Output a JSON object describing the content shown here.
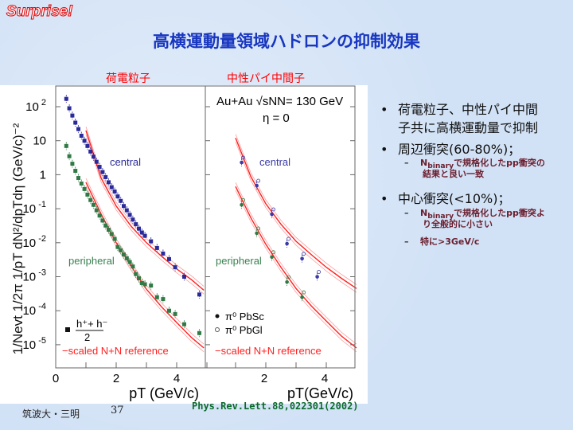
{
  "slide": {
    "badge": "Surprise!",
    "title": "高横運動量領域ハドロンの抑制効果",
    "subhead_left": "荷電粒子",
    "subhead_right": "中性パイ中間子",
    "footer": "筑波大・三明",
    "page_number": "37",
    "reference": "Phys.Rev.Lett.88,022301(2002)"
  },
  "bullets": [
    {
      "text": "荷電粒子、中性パイ中間",
      "text2": "子共に高横運動量で抑制"
    },
    {
      "text": "周辺衝突(60-80%)；",
      "subs": [
        {
          "pre": "N",
          "subscript": "binary",
          "text": "で規格化したpp衝突の",
          "text2": "結果と良い一致"
        }
      ]
    },
    {
      "text": "中心衝突(<10%)；",
      "subs": [
        {
          "pre": "N",
          "subscript": "binary",
          "text": "で規格化したpp衝突よ",
          "text2": "り全般的に小さい"
        },
        {
          "text": "特に>3GeV/c"
        }
      ]
    }
  ],
  "chart_data": [
    {
      "type": "scatter",
      "panel": "charged hadrons",
      "ylabel": "1/Nevt 1/2π 1/pT dN²/dpTdη (GeV/c)⁻²",
      "xlabel": "pT (GeV/c)",
      "xlim": [
        0,
        4.9
      ],
      "ylim": [
        2.1e-06,
        400
      ],
      "yscale": "log",
      "xticks": [
        "0",
        "2",
        "4"
      ],
      "yticks": [
        {
          "base": "10",
          "exp": "2"
        },
        {
          "base": "10",
          "exp": ""
        },
        {
          "base": "1",
          "exp": ""
        },
        {
          "base": "10",
          "exp": "-1"
        },
        {
          "base": "10",
          "exp": "-2"
        },
        {
          "base": "10",
          "exp": "-3"
        },
        {
          "base": "10",
          "exp": "-4"
        },
        {
          "base": "10",
          "exp": "-5"
        }
      ],
      "labels": {
        "central": "central",
        "peripheral": "peripheral",
        "legend_marker": "h⁺+ h⁻",
        "legend_denominator": "2",
        "legend_ref": "−scaled N+N reference"
      },
      "series": [
        {
          "name": "central",
          "color": "#2a2a9a",
          "x": [
            0.35,
            0.45,
            0.55,
            0.65,
            0.75,
            0.85,
            0.95,
            1.05,
            1.15,
            1.25,
            1.35,
            1.45,
            1.55,
            1.65,
            1.75,
            1.85,
            1.95,
            2.05,
            2.15,
            2.25,
            2.35,
            2.45,
            2.55,
            2.65,
            2.75,
            2.85,
            2.95,
            3.15,
            3.35,
            3.55,
            3.75,
            3.95,
            4.25,
            4.75
          ],
          "y": [
            170,
            90,
            55,
            34,
            22,
            14,
            10,
            7,
            4.8,
            3.4,
            2.4,
            1.7,
            1.2,
            0.85,
            0.6,
            0.43,
            0.32,
            0.23,
            0.17,
            0.12,
            0.09,
            0.066,
            0.048,
            0.035,
            0.026,
            0.02,
            0.016,
            0.011,
            0.007,
            0.0048,
            0.0033,
            0.0019,
            0.001,
            0.0003
          ]
        },
        {
          "name": "peripheral",
          "color": "#2f7a45",
          "x": [
            0.35,
            0.45,
            0.55,
            0.65,
            0.75,
            0.85,
            0.95,
            1.05,
            1.15,
            1.25,
            1.35,
            1.45,
            1.55,
            1.65,
            1.75,
            1.85,
            1.95,
            2.05,
            2.15,
            2.25,
            2.35,
            2.45,
            2.55,
            2.65,
            2.75,
            2.85,
            2.95,
            3.15,
            3.35,
            3.55,
            3.75,
            3.95,
            4.25,
            4.75
          ],
          "y": [
            7,
            3.5,
            2.1,
            1.3,
            0.8,
            0.55,
            0.38,
            0.26,
            0.18,
            0.13,
            0.09,
            0.063,
            0.045,
            0.032,
            0.024,
            0.018,
            0.013,
            0.0075,
            0.006,
            0.0045,
            0.0035,
            0.0027,
            0.002,
            0.0012,
            0.0009,
            0.00065,
            0.0006,
            0.00055,
            0.00025,
            0.00022,
            0.0001,
            8e-05,
            4e-05,
            2.2e-05
          ]
        }
      ],
      "reference_curves": [
        {
          "name": "central reference",
          "x": [
            1.0,
            1.5,
            2.0,
            2.5,
            3.0,
            3.5,
            4.0,
            4.5,
            4.9
          ],
          "y": [
            20,
            0.8,
            0.12,
            0.03,
            0.01,
            0.004,
            0.0017,
            0.0008,
            0.0004
          ]
        },
        {
          "name": "peripheral reference",
          "x": [
            1.0,
            1.5,
            2.0,
            2.5,
            3.0,
            3.5,
            4.0,
            4.5,
            4.9
          ],
          "y": [
            0.6,
            0.07,
            0.01,
            0.002,
            0.00043,
            0.00013,
            4.5e-05,
            1.6e-05,
            8e-06
          ]
        }
      ]
    },
    {
      "type": "scatter",
      "panel": "neutral pions",
      "xlabel": "pT(GeV/c)",
      "xlim": [
        0,
        5
      ],
      "ylim": [
        2.1e-06,
        400
      ],
      "yscale": "log",
      "xticks": [
        "0",
        "2",
        "4"
      ],
      "labels": {
        "system": "Au+Au √sNN= 130 GeV",
        "eta": "η = 0",
        "central": "central",
        "peripheral": "peripheral",
        "legend_pbsc": "π⁰  PbSc",
        "legend_pbgl": "π⁰  PbGl",
        "legend_ref": "−scaled N+N reference"
      },
      "series": [
        {
          "name": "central",
          "color": "#3a3aa8",
          "x": [
            1.2,
            1.7,
            2.2,
            2.7,
            3.2,
            3.7
          ],
          "y": [
            2.3,
            0.48,
            0.069,
            0.0094,
            0.0034,
            0.001
          ]
        },
        {
          "name": "peripheral",
          "color": "#2f7a45",
          "x": [
            1.2,
            1.7,
            2.2,
            2.7,
            3.2
          ],
          "y": [
            0.13,
            0.019,
            0.0038,
            0.0007,
            0.00025
          ]
        }
      ],
      "reference_curves": [
        {
          "name": "central reference",
          "x": [
            1.0,
            1.5,
            2.0,
            2.5,
            3.0,
            3.5,
            4.0,
            4.5,
            5.0
          ],
          "y": [
            12,
            0.9,
            0.14,
            0.035,
            0.011,
            0.0045,
            0.0019,
            0.0009,
            0.00045
          ]
        },
        {
          "name": "peripheral reference",
          "x": [
            1.0,
            1.5,
            2.0,
            2.5,
            3.0,
            3.5,
            4.0,
            4.5,
            5.0
          ],
          "y": [
            0.45,
            0.055,
            0.009,
            0.0019,
            0.00045,
            0.00014,
            5e-05,
            1.8e-05,
            8e-06
          ]
        }
      ]
    }
  ],
  "colors": {
    "title": "#1836c0",
    "red": "#ff0000",
    "reference_band": "#ff3030"
  }
}
